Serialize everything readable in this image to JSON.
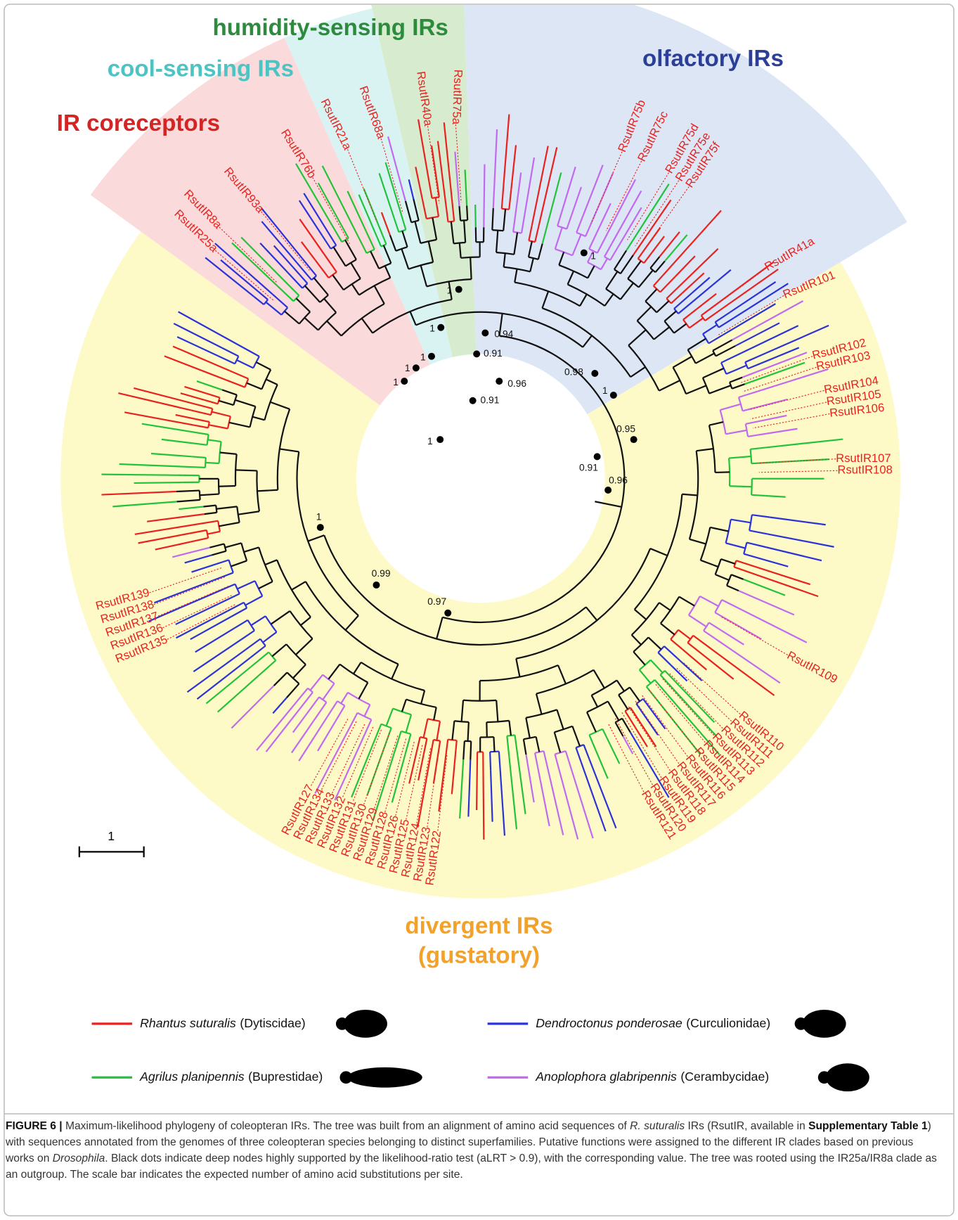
{
  "clades": [
    {
      "label": "humidity-sensing IRs",
      "color": "#2e8b3e"
    },
    {
      "label": "cool-sensing IRs",
      "color": "#4cc4c4"
    },
    {
      "label": "olfactory IRs",
      "color": "#2b3f98"
    },
    {
      "label": "IR coreceptors",
      "color": "#d42424"
    },
    {
      "label": "divergent IRs",
      "sublabel": "(gustatory)",
      "color": "#f2a12b"
    }
  ],
  "leaves": [
    "RsutIR75a",
    "RsutIR40a",
    "RsutIR68a",
    "RsutIR21a",
    "RsutIR76b",
    "RsutIR93a",
    "RsutIR8a",
    "RsutIR25a",
    "RsutIR75b",
    "RsutIR75c",
    "RsutIR75d",
    "RsutIR75e",
    "RsutIR75f",
    "RsutIR41a",
    "RsutIR101",
    "RsutIR102",
    "RsutIR103",
    "RsutIR104",
    "RsutIR105",
    "RsutIR106",
    "RsutIR107",
    "RsutIR108",
    "RsutIR109",
    "RsutIR110",
    "RsutIR111",
    "RsutIR112",
    "RsutIR113",
    "RsutIR114",
    "RsutIR115",
    "RsutIR116",
    "RsutIR117",
    "RsutIR118",
    "RsutIR119",
    "RsutIR120",
    "RsutIR121",
    "RsutIR122",
    "RsutIR123",
    "RsutIR124",
    "RsutIR125",
    "RsutIR126",
    "RsutIR128",
    "RsutIR129",
    "RsutIR130",
    "RsutIR131",
    "RsutIR132",
    "RsutIR133",
    "RsutIR134",
    "RsutIR127",
    "RsutIR135",
    "RsutIR136",
    "RsutIR137",
    "RsutIR138",
    "RsutIR139"
  ],
  "support_values": [
    1,
    1,
    1,
    1,
    1,
    1,
    0.94,
    0.91,
    0.96,
    0.91,
    1,
    0.98,
    1,
    0.95,
    0.91,
    0.96,
    1,
    0.99,
    0.97
  ],
  "scale_bar": {
    "label": 1
  },
  "legend": [
    {
      "species": "Rhantus suturalis",
      "family": "(Dytiscidae)",
      "color": "#e8221f"
    },
    {
      "species": "Dendroctonus ponderosae",
      "family": "(Curculionidae)",
      "color": "#2b33d6"
    },
    {
      "species": "Agrilus planipennis",
      "family": "(Buprestidae)",
      "color": "#22c33a"
    },
    {
      "species": "Anoplophora glabripennis",
      "family": "(Cerambycidae)",
      "color": "#c16af0"
    }
  ],
  "caption": {
    "label": "FIGURE 6 |",
    "parts": [
      " Maximum-likelihood phylogeny of coleopteran IRs. The tree was built from an alignment of amino acid sequences of ",
      "R. suturalis",
      " IRs (RsutIR, available in ",
      "Supplementary Table 1",
      ") with sequences annotated from the genomes of three coleopteran species belonging to distinct superfamilies. Putative functions were assigned to the different IR clades based on previous works on ",
      "Drosophila",
      ". Black dots indicate deep nodes highly supported by the likelihood-ratio test (aLRT > 0.9), with the corresponding value. The tree was rooted using the IR25a/IR8a clade as an outgroup. The scale bar indicates the expected number of amino acid substitutions per site."
    ]
  }
}
